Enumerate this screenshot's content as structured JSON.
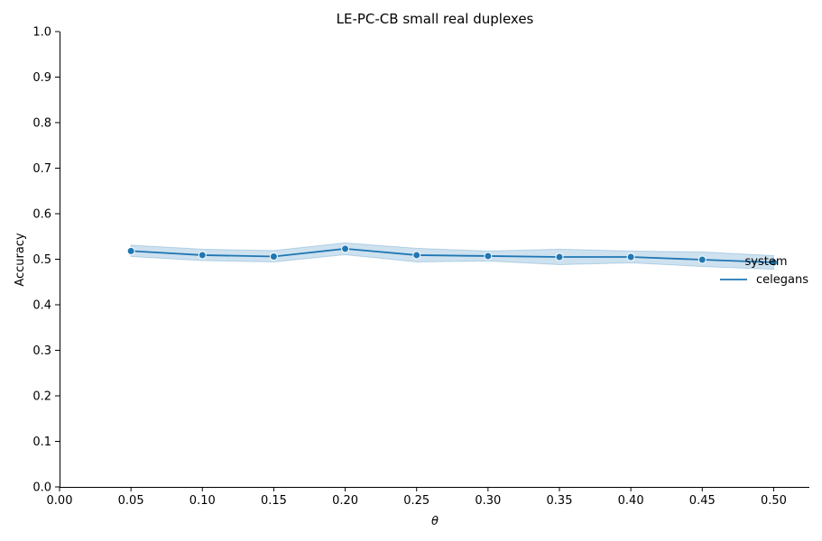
{
  "chart_data": {
    "type": "line",
    "title": "LE-PC-CB small real duplexes",
    "xlabel": "θ",
    "ylabel": "Accuracy",
    "xlim": [
      0.0,
      0.525
    ],
    "ylim": [
      0.0,
      1.0
    ],
    "xticks": [
      "0.00",
      "0.05",
      "0.10",
      "0.15",
      "0.20",
      "0.25",
      "0.30",
      "0.35",
      "0.40",
      "0.45",
      "0.50"
    ],
    "yticks": [
      "0.0",
      "0.1",
      "0.2",
      "0.3",
      "0.4",
      "0.5",
      "0.6",
      "0.7",
      "0.8",
      "0.9",
      "1.0"
    ],
    "grid": false,
    "legend": {
      "title": "system",
      "placement": "right"
    },
    "colors": {
      "line": "#1f77b4",
      "band": "#1f77b4"
    },
    "series": [
      {
        "name": "celegans",
        "x": [
          0.05,
          0.1,
          0.15,
          0.2,
          0.25,
          0.3,
          0.35,
          0.4,
          0.45,
          0.5
        ],
        "y": [
          0.518,
          0.509,
          0.506,
          0.523,
          0.509,
          0.507,
          0.505,
          0.505,
          0.499,
          0.493
        ],
        "ci_low": [
          0.506,
          0.497,
          0.494,
          0.51,
          0.494,
          0.496,
          0.488,
          0.492,
          0.484,
          0.478
        ],
        "ci_high": [
          0.531,
          0.522,
          0.519,
          0.536,
          0.524,
          0.518,
          0.522,
          0.518,
          0.516,
          0.508
        ]
      }
    ]
  }
}
